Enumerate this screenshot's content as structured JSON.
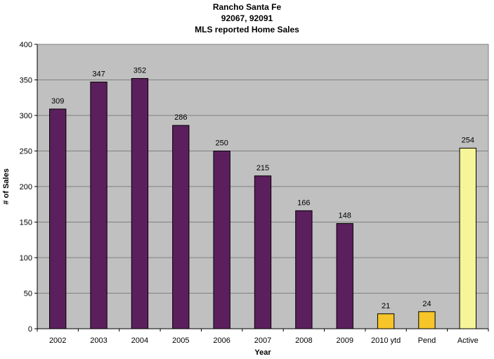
{
  "chart_data": {
    "type": "bar",
    "title": [
      "Rancho Santa Fe",
      "92067, 92091",
      "MLS reported Home Sales"
    ],
    "xlabel": "Year",
    "ylabel": "# of Sales",
    "ylim": [
      0,
      400
    ],
    "yticks": [
      0,
      50,
      100,
      150,
      200,
      250,
      300,
      350,
      400
    ],
    "grid": true,
    "legend": "none",
    "categories": [
      "2002",
      "2003",
      "2004",
      "2005",
      "2006",
      "2007",
      "2008",
      "2009",
      "2010 ytd",
      "Pend",
      "Active"
    ],
    "values": [
      309,
      347,
      352,
      286,
      250,
      215,
      166,
      148,
      21,
      24,
      254
    ],
    "bar_colors": [
      "#5c1f5e",
      "#5c1f5e",
      "#5c1f5e",
      "#5c1f5e",
      "#5c1f5e",
      "#5c1f5e",
      "#5c1f5e",
      "#5c1f5e",
      "#f5c52a",
      "#f5c52a",
      "#f7f59a"
    ],
    "plot_background": "#c0c0c0"
  }
}
